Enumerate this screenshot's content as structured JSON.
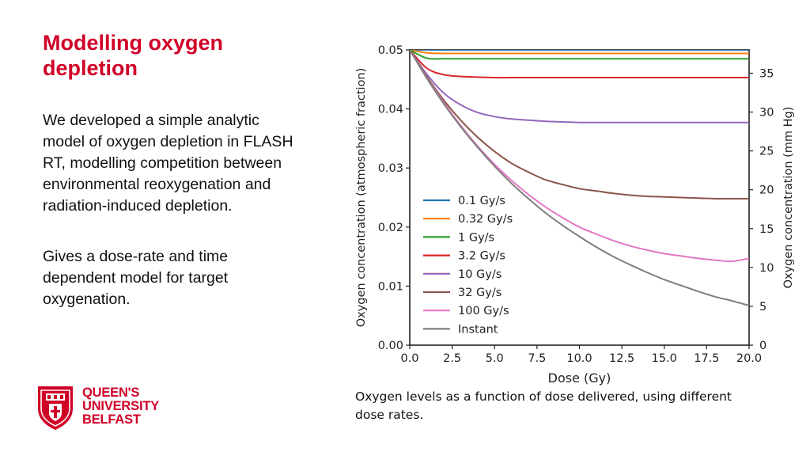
{
  "slide": {
    "title": "Modelling oxygen depletion",
    "paragraph1": "We developed a simple analytic model of oxygen depletion in FLASH RT, modelling competition between environmental reoxygenation and radiation-induced depletion.",
    "paragraph2": "Gives a dose-rate and time dependent model for target oxygenation.",
    "caption": "Oxygen levels as a function of dose delivered, using different dose rates."
  },
  "logo": {
    "line1": "QUEEN'S",
    "line2": "UNIVERSITY",
    "line3": "BELFAST",
    "color": "#d00027"
  },
  "chart_data": {
    "type": "line",
    "xlabel": "Dose (Gy)",
    "ylabel": "Oxygen concentration (atmospheric fraction)",
    "y2label": "Oxygen concentration (mm Hg)",
    "xlim": [
      0,
      20
    ],
    "ylim": [
      0,
      0.05
    ],
    "y2lim": [
      0,
      38
    ],
    "xticks": [
      "0.0",
      "2.5",
      "5.0",
      "7.5",
      "10.0",
      "12.5",
      "15.0",
      "17.5",
      "20.0"
    ],
    "yticks": [
      "0.00",
      "0.01",
      "0.02",
      "0.03",
      "0.04",
      "0.05"
    ],
    "y2ticks": [
      "0",
      "5",
      "10",
      "15",
      "20",
      "25",
      "30",
      "35"
    ],
    "grid": false,
    "legend_position": "center-right",
    "x": [
      0,
      1,
      2,
      3,
      4,
      5,
      6,
      7,
      8,
      9,
      10,
      11,
      12,
      13,
      14,
      15,
      16,
      17,
      18,
      19,
      20
    ],
    "series": [
      {
        "name": "0.1 Gy/s",
        "color": "#1f77b4",
        "values": [
          0.05,
          0.05,
          0.05,
          0.05,
          0.05,
          0.05,
          0.05,
          0.05,
          0.05,
          0.05,
          0.05,
          0.05,
          0.05,
          0.05,
          0.05,
          0.05,
          0.05,
          0.05,
          0.05,
          0.05,
          0.05
        ]
      },
      {
        "name": "0.32 Gy/s",
        "color": "#ff7f0e",
        "values": [
          0.05,
          0.0495,
          0.0494,
          0.0494,
          0.0494,
          0.0494,
          0.0494,
          0.0494,
          0.0494,
          0.0494,
          0.0494,
          0.0494,
          0.0494,
          0.0494,
          0.0494,
          0.0494,
          0.0494,
          0.0494,
          0.0494,
          0.0494,
          0.0494
        ]
      },
      {
        "name": "1 Gy/s",
        "color": "#2ca02c",
        "values": [
          0.05,
          0.0486,
          0.0485,
          0.0485,
          0.0485,
          0.0485,
          0.0485,
          0.0485,
          0.0485,
          0.0485,
          0.0485,
          0.0485,
          0.0485,
          0.0485,
          0.0485,
          0.0485,
          0.0485,
          0.0485,
          0.0485,
          0.0485,
          0.0485
        ]
      },
      {
        "name": "3.2 Gy/s",
        "color": "#d62728",
        "values": [
          0.05,
          0.0469,
          0.0458,
          0.0455,
          0.0454,
          0.0453,
          0.0453,
          0.0453,
          0.0453,
          0.0453,
          0.0453,
          0.0453,
          0.0453,
          0.0453,
          0.0453,
          0.0453,
          0.0453,
          0.0453,
          0.0453,
          0.0453,
          0.0453
        ]
      },
      {
        "name": "10 Gy/s",
        "color": "#9467bd",
        "values": [
          0.05,
          0.0459,
          0.0427,
          0.0407,
          0.0394,
          0.0387,
          0.0383,
          0.0381,
          0.0379,
          0.0378,
          0.0377,
          0.0377,
          0.0377,
          0.0377,
          0.0377,
          0.0377,
          0.0377,
          0.0377,
          0.0377,
          0.0377,
          0.0377
        ]
      },
      {
        "name": "32 Gy/s",
        "color": "#8c564b",
        "values": [
          0.05,
          0.0455,
          0.0415,
          0.0381,
          0.0352,
          0.0328,
          0.0308,
          0.0293,
          0.028,
          0.0272,
          0.0265,
          0.0261,
          0.0257,
          0.0254,
          0.0252,
          0.0251,
          0.025,
          0.0249,
          0.0248,
          0.0248,
          0.0248
        ]
      },
      {
        "name": "100 Gy/s",
        "color": "#e377c2",
        "values": [
          0.05,
          0.0453,
          0.0411,
          0.0372,
          0.0337,
          0.0306,
          0.0279,
          0.0255,
          0.0234,
          0.0216,
          0.02,
          0.0188,
          0.0177,
          0.0168,
          0.0161,
          0.0155,
          0.0151,
          0.0147,
          0.0144,
          0.0142,
          0.0147
        ]
      },
      {
        "name": "Instant",
        "color": "#7f7f7f",
        "values": [
          0.05,
          0.0452,
          0.0409,
          0.037,
          0.0335,
          0.0303,
          0.0274,
          0.0248,
          0.0224,
          0.0203,
          0.0184,
          0.0166,
          0.015,
          0.0136,
          0.0123,
          0.0111,
          0.0101,
          0.0091,
          0.0082,
          0.0075,
          0.0067
        ]
      }
    ]
  }
}
